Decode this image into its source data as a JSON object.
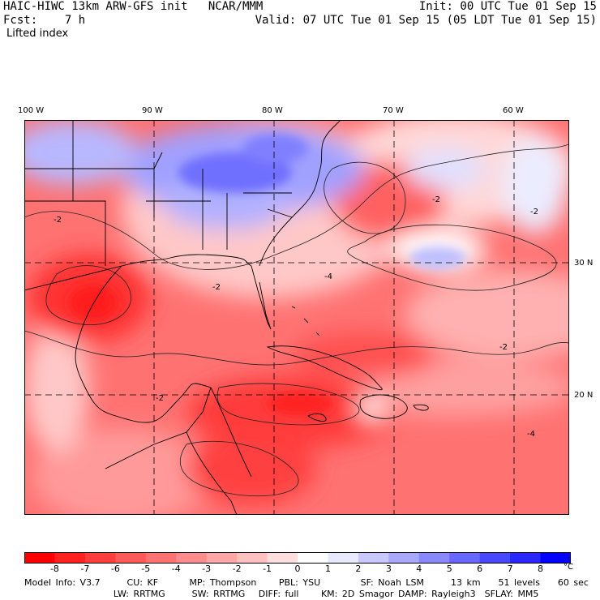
{
  "header": {
    "title": "HAIC-HIWC 13km ARW-GFS init   NCAR/MMM",
    "forecast": "Fcst:    7 h",
    "init": "Init: 00 UTC Tue 01 Sep 15",
    "valid": "Valid: 07 UTC Tue 01 Sep 15 (05 LDT Tue 01 Sep 15)",
    "field": "Lifted index"
  },
  "map": {
    "lon_labels": [
      "100 W",
      "90 W",
      "80 W",
      "70 W",
      "60 W"
    ],
    "lat_labels": [
      "30 N",
      "20 N"
    ],
    "contour_label": "-2",
    "contour_label_4": "-4"
  },
  "colorbar": {
    "ticks": [
      "-8",
      "-7",
      "-6",
      "-5",
      "-4",
      "-3",
      "-2",
      "-1",
      "0",
      "1",
      "2",
      "3",
      "4",
      "5",
      "6",
      "7",
      "8"
    ],
    "unit": "°C",
    "colors": [
      "#ff0000",
      "#ff2020",
      "#ff3d3d",
      "#ff5858",
      "#ff7272",
      "#ff8c8c",
      "#ffa6a6",
      "#ffc0c0",
      "#ffdede",
      "#ffffff",
      "#e8e8ff",
      "#c8c8ff",
      "#a8a8ff",
      "#8888ff",
      "#6868ff",
      "#4848ff",
      "#2828ff",
      "#0000ff"
    ]
  },
  "footer": {
    "line1": "Model Info: V3.7      CU: KF       MP: Thompson     PBL: YSU         SF: Noah LSM      13 km    51 levels    60 sec",
    "line2": "                    LW: RRTMG      SW: RRTMG   DIFF: full     KM: 2D Smagor DAMP: Rayleigh3  SFLAY: MM5"
  }
}
